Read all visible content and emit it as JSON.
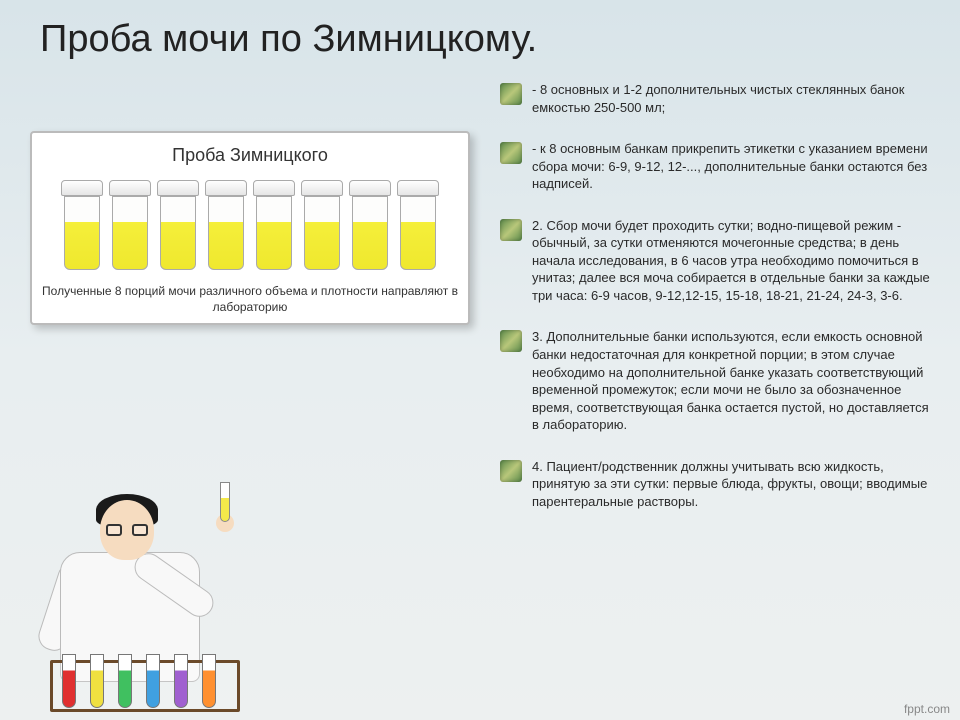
{
  "title": "Проба мочи по Зимницкому.",
  "sample_card": {
    "title": "Проба Зимницкого",
    "caption": "Полученные 8 порций мочи различного объема и плотности направляют в лабораторию",
    "jar_count": 8,
    "urine_color": "#f2e936"
  },
  "bullets": [
    " - 8 основных и 1-2 дополнительных чистых стеклянных банок емкостью 250-500 мл;",
    " - к 8 основным банкам прикрепить этикетки с указанием времени сбора мочи: 6-9, 9-12, 12-..., дополнительные банки остаются без надписей.",
    "2. Сбор мочи будет проходить сутки; водно-пищевой режим - обычный, за сутки отменяются мочегонные средства; в день начала исследования, в 6 часов утра необходимо помочиться в унитаз; далее вся моча собирается в отдельные банки за каждые три часа: 6-9 часов, 9-12,12-15, 15-18, 18-21, 21-24, 24-3, 3-6.",
    "3. Дополнительные банки используются, если емкость основной банки недостаточная для конкретной порции; в этом случае необходимо на дополнительной банке указать соответствующий временной промежуток; если мочи не было за обозначенное время, соответствующая банка остается пустой, но доставляется в лабораторию.",
    "4. Пациент/родственник должны учитывать всю жидкость, принятую за эти сутки: первые блюда, фрукты, овощи; вводимые парентеральные растворы."
  ],
  "rack_tube_colors": [
    "#e03030",
    "#f0e040",
    "#40c060",
    "#40a0e0",
    "#a060d0",
    "#ff9030"
  ],
  "footer": "fppt.com",
  "colors": {
    "bg_top": "#d8e4e9",
    "text": "#2a2a2a",
    "bullet_icon": "#6a9050"
  }
}
